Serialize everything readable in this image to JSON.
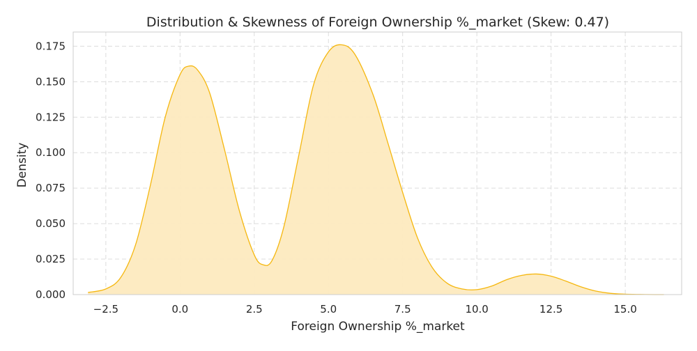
{
  "chart_data": {
    "type": "area",
    "title": "Distribution & Skewness of Foreign Ownership %_market (Skew: 0.47)",
    "xlabel": "Foreign Ownership %_market",
    "ylabel": "Density",
    "xlim": [
      -3.6,
      16.9
    ],
    "ylim": [
      0,
      0.185
    ],
    "xticks": [
      -2.5,
      0.0,
      2.5,
      5.0,
      7.5,
      10.0,
      12.5,
      15.0
    ],
    "xtick_labels": [
      "−2.5",
      "0.0",
      "2.5",
      "5.0",
      "7.5",
      "10.0",
      "12.5",
      "15.0"
    ],
    "yticks": [
      0.0,
      0.025,
      0.05,
      0.075,
      0.1,
      0.125,
      0.15,
      0.175
    ],
    "ytick_labels": [
      "0.000",
      "0.025",
      "0.050",
      "0.075",
      "0.100",
      "0.125",
      "0.150",
      "0.175"
    ],
    "grid": true,
    "legend": false,
    "line_color": "#f5b70f",
    "fill_color": "#fdeabf",
    "series": [
      {
        "x": [
          -3.1,
          -2.5,
          -2.0,
          -1.5,
          -1.0,
          -0.5,
          0.0,
          0.3,
          0.6,
          1.0,
          1.5,
          2.0,
          2.5,
          2.8,
          3.1,
          3.5,
          4.0,
          4.5,
          5.0,
          5.45,
          5.9,
          6.5,
          7.0,
          7.5,
          8.0,
          8.5,
          9.0,
          9.5,
          10.0,
          10.5,
          11.0,
          11.5,
          12.0,
          12.5,
          13.0,
          13.5,
          14.0,
          14.5,
          15.0,
          15.5,
          16.0,
          16.3
        ],
        "y": [
          0.0015,
          0.004,
          0.012,
          0.035,
          0.077,
          0.125,
          0.155,
          0.161,
          0.158,
          0.142,
          0.102,
          0.059,
          0.028,
          0.021,
          0.024,
          0.048,
          0.098,
          0.148,
          0.171,
          0.176,
          0.169,
          0.141,
          0.107,
          0.072,
          0.04,
          0.019,
          0.008,
          0.004,
          0.0035,
          0.006,
          0.0105,
          0.0135,
          0.0145,
          0.013,
          0.0095,
          0.0055,
          0.0025,
          0.0009,
          0.0003,
          0.0001,
          0.0,
          0.0
        ]
      }
    ]
  }
}
